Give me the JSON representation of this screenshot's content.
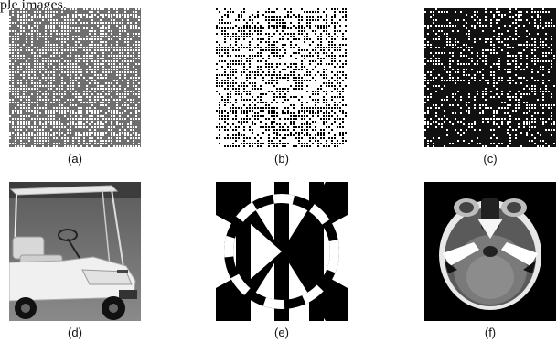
{
  "intro_text": "ple images.",
  "figure": {
    "panels": [
      {
        "id": "a",
        "caption": "(a)",
        "content": "noise-texture",
        "density": 0.62
      },
      {
        "id": "b",
        "caption": "(b)",
        "content": "noise-texture",
        "density": 0.5
      },
      {
        "id": "c",
        "caption": "(c)",
        "content": "noise-texture",
        "density": 0.32
      },
      {
        "id": "d",
        "caption": "(d)",
        "content": "photo-golf-cart"
      },
      {
        "id": "e",
        "caption": "(e)",
        "content": "geometric-bw-pattern"
      },
      {
        "id": "f",
        "caption": "(f)",
        "content": "ct-scan-head"
      }
    ]
  }
}
